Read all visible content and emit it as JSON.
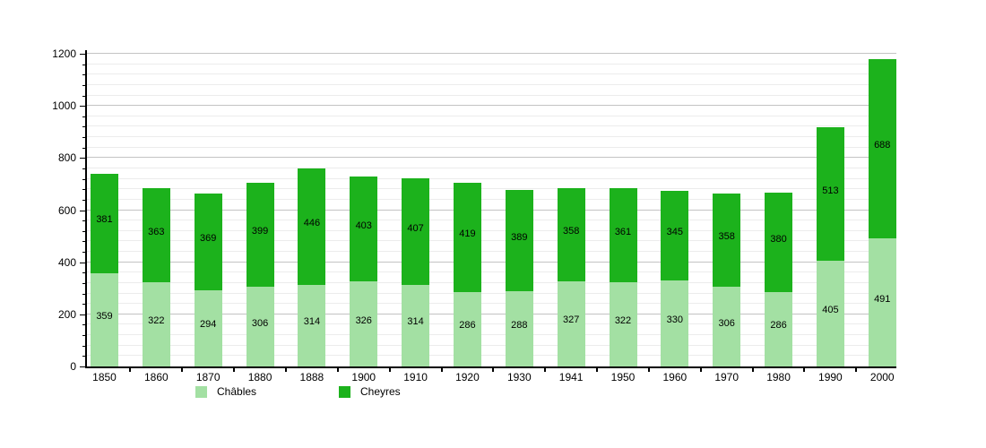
{
  "chart_data": {
    "type": "bar",
    "stacked": true,
    "title": "",
    "xlabel": "",
    "ylabel": "",
    "categories": [
      "1850",
      "1860",
      "1870",
      "1880",
      "1888",
      "1900",
      "1910",
      "1920",
      "1930",
      "1941",
      "1950",
      "1960",
      "1970",
      "1980",
      "1990",
      "2000"
    ],
    "series": [
      {
        "name": "Châbles",
        "color": "#a3e0a3",
        "values": [
          359,
          322,
          294,
          306,
          314,
          326,
          314,
          286,
          288,
          327,
          322,
          330,
          306,
          286,
          405,
          491
        ]
      },
      {
        "name": "Cheyres",
        "color": "#1cb21c",
        "values": [
          381,
          363,
          369,
          399,
          446,
          403,
          407,
          419,
          389,
          358,
          361,
          345,
          358,
          380,
          513,
          688
        ]
      }
    ],
    "totals": [
      740,
      685,
      663,
      705,
      760,
      729,
      721,
      705,
      677,
      685,
      683,
      675,
      664,
      666,
      918,
      1179
    ],
    "ylim": [
      0,
      1200
    ],
    "y_major_step": 200,
    "y_minor_step": 40,
    "y_tick_labels": [
      "0",
      "200",
      "400",
      "600",
      "800",
      "1000",
      "1200"
    ],
    "grid": true,
    "value_labels": true,
    "legend_position": "bottom"
  }
}
